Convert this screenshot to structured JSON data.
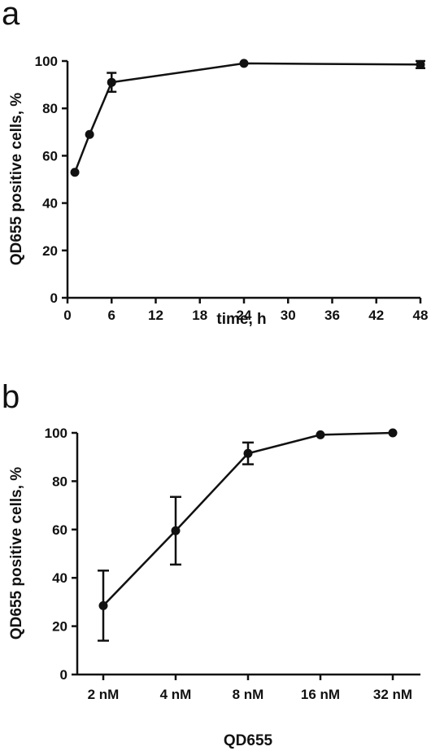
{
  "chart_data": [
    {
      "type": "line",
      "panel_letter": "a",
      "xlabel": "time, h",
      "ylabel": "QD655 positive cells, %",
      "xlim": [
        0,
        48
      ],
      "ylim": [
        0,
        100
      ],
      "xticks": [
        0,
        6,
        12,
        18,
        24,
        30,
        36,
        42,
        48
      ],
      "yticks": [
        0,
        20,
        40,
        60,
        80,
        100
      ],
      "series": [
        {
          "x": [
            1,
            3,
            6,
            24,
            48
          ],
          "y": [
            53,
            69,
            91,
            99,
            98.5
          ],
          "err": [
            0,
            0,
            4,
            0,
            1.5
          ]
        }
      ]
    },
    {
      "type": "line",
      "panel_letter": "b",
      "xlabel": "QD655",
      "ylabel": "QD655 positive cells, %",
      "ylim": [
        0,
        100
      ],
      "yticks": [
        0,
        20,
        40,
        60,
        80,
        100
      ],
      "categories": [
        "2 nM",
        "4 nM",
        "8 nM",
        "16 nM",
        "32 nM"
      ],
      "series": [
        {
          "values": [
            28.5,
            59.5,
            91.5,
            99.2,
            100
          ],
          "err": [
            14.5,
            14,
            4.5,
            0,
            0
          ]
        }
      ]
    }
  ]
}
